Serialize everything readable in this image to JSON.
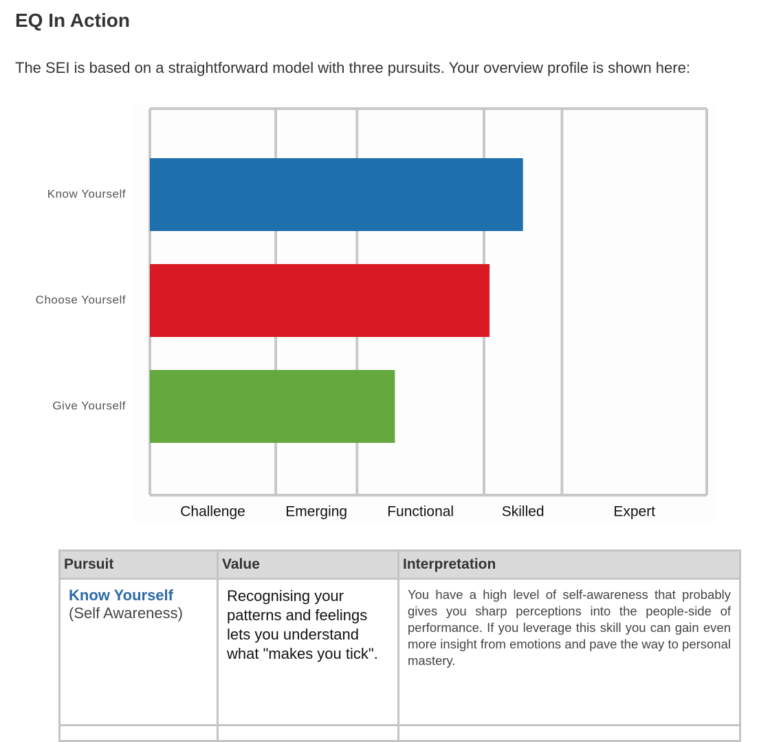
{
  "header": {
    "title": "EQ In Action"
  },
  "intro": "The SEI is based on a straightforward model with three pursuits. Your overview profile is shown here:",
  "chart_data": {
    "type": "hbar",
    "categories": [
      "Know Yourself",
      "Choose Yourself",
      "Give Yourself"
    ],
    "values": [
      67,
      61,
      44
    ],
    "colors": [
      "#1d6fad",
      "#d91a25",
      "#64a83e"
    ],
    "xlim": [
      0,
      100
    ],
    "band_edges": [
      0,
      22.6,
      37.2,
      60,
      74,
      100
    ],
    "band_labels": [
      "Challenge",
      "Emerging",
      "Functional",
      "Skilled",
      "Expert"
    ]
  },
  "table": {
    "headers": [
      "Pursuit",
      "Value",
      "Interpretation"
    ],
    "rows": [
      [
        "Know Yourself",
        "(Self Awareness)",
        "Recognising your patterns and feelings lets you understand what \"makes you tick\".",
        "You have a high level of self-awareness that probably gives you sharp perceptions into the people-side of performance. If you leverage this skill you can gain even more insight from emotions and pave the way to personal mastery."
      ]
    ]
  }
}
